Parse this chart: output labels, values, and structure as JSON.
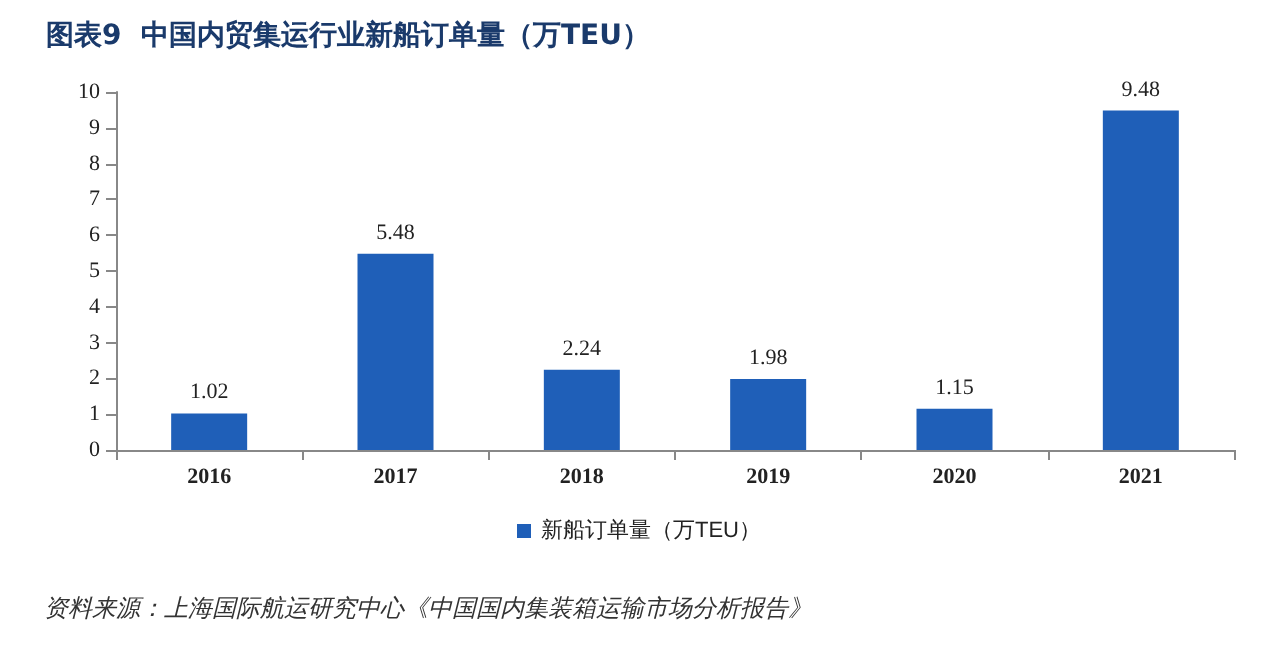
{
  "chart_data": {
    "type": "bar",
    "title": "图表9  中国内贸集运行业新船订单量（万TEU）",
    "categories": [
      "2016",
      "2017",
      "2018",
      "2019",
      "2020",
      "2021"
    ],
    "series": [
      {
        "name": "新船订单量（万TEU）",
        "color": "#1f5fb8",
        "values": [
          1.02,
          5.48,
          2.24,
          1.98,
          1.15,
          9.48
        ]
      }
    ],
    "ylim": [
      0,
      10
    ],
    "yticks": [
      0,
      1,
      2,
      3,
      4,
      5,
      6,
      7,
      8,
      9,
      10
    ],
    "grid": false,
    "legend": "bottom",
    "data_labels": true,
    "annotations": [
      "资料来源：上海国际航运研究中心《中国国内集装箱运输市场分析报告》"
    ]
  }
}
